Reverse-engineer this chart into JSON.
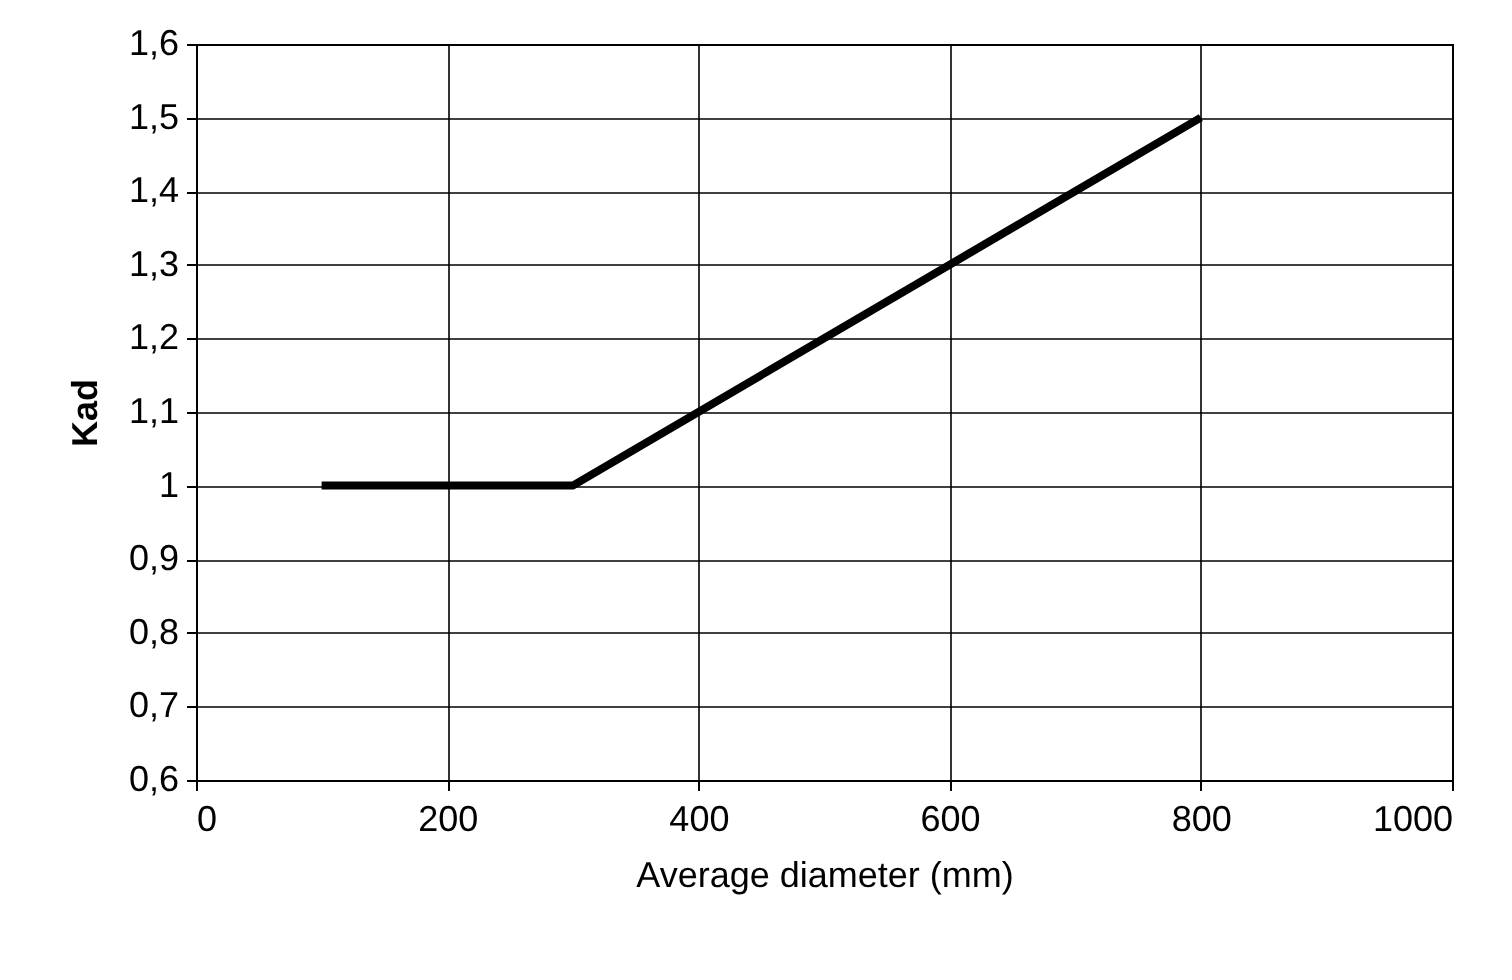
{
  "chart_data": {
    "type": "line",
    "xlabel": "Average diameter (mm)",
    "ylabel": "Kad",
    "x": [
      100,
      300,
      800
    ],
    "series": [
      {
        "color": "#000000",
        "values": [
          1,
          1,
          1.5
        ]
      }
    ],
    "xlim": [
      0,
      1000
    ],
    "xticks": [
      0,
      200,
      400,
      600,
      800,
      1000
    ],
    "ylim": [
      0.6,
      1.6
    ],
    "yticks": [
      {
        "value": 0.6,
        "label": "0,6"
      },
      {
        "value": 0.7,
        "label": "0,7"
      },
      {
        "value": 0.8,
        "label": "0,8"
      },
      {
        "value": 0.9,
        "label": "0,9"
      },
      1,
      {
        "value": 1.1,
        "label": "1,1"
      },
      {
        "value": 1.2,
        "label": "1,2"
      },
      {
        "value": 1.3,
        "label": "1,3"
      },
      {
        "value": 1.4,
        "label": "1,4"
      },
      {
        "value": 1.5,
        "label": "1,5"
      },
      {
        "value": 1.6,
        "label": "1,6"
      }
    ],
    "grid": true,
    "marker": "none",
    "line_style": "solid"
  }
}
